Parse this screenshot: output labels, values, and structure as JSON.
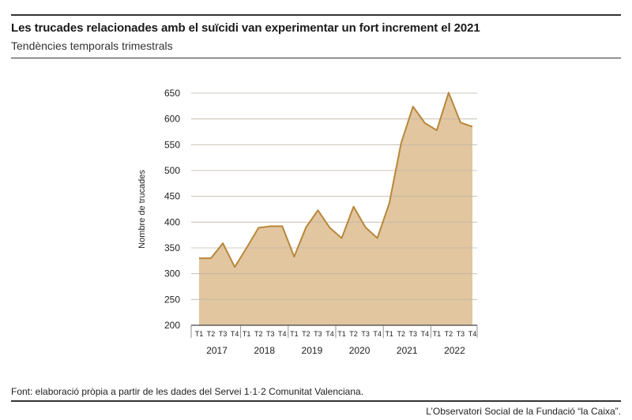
{
  "header": {
    "title": "Les trucades relacionades amb el suïcidi van experimentar un fort increment el 2021",
    "subtitle": "Tendències temporals trimestrals"
  },
  "footer": {
    "source": "Font: elaboració pròpia a partir de les dades del Servei 1·1·2 Comunitat Valenciana.",
    "credit": "L’Observatori Social de la Fundació “la Caixa”."
  },
  "colors": {
    "area_fill": "#e1c6a0",
    "line": "#b8873a",
    "grid": "#bfb6a8",
    "rule": "#333333"
  },
  "chart_data": {
    "type": "area",
    "title": "Les trucades relacionades amb el suïcidi van experimentar un fort increment el 2021",
    "subtitle": "Tendències temporals trimestrals",
    "xlabel": "",
    "ylabel": "Nombre de trucades",
    "ylim": [
      200,
      650
    ],
    "yticks": [
      200,
      250,
      300,
      350,
      400,
      450,
      500,
      550,
      600,
      650
    ],
    "grid": true,
    "quarter_labels": [
      "T1",
      "T2",
      "T3",
      "T4"
    ],
    "years": [
      "2017",
      "2018",
      "2019",
      "2020",
      "2021",
      "2022"
    ],
    "categories": [
      "2017 T1",
      "2017 T2",
      "2017 T3",
      "2017 T4",
      "2018 T1",
      "2018 T2",
      "2018 T3",
      "2018 T4",
      "2019 T1",
      "2019 T2",
      "2019 T3",
      "2019 T4",
      "2020 T1",
      "2020 T2",
      "2020 T3",
      "2020 T4",
      "2021 T1",
      "2021 T2",
      "2021 T3",
      "2021 T4",
      "2022 T1",
      "2022 T2",
      "2022 T3",
      "2022 T4"
    ],
    "values": [
      330,
      330,
      359,
      313,
      350,
      389,
      392,
      392,
      333,
      390,
      423,
      389,
      369,
      430,
      390,
      369,
      436,
      553,
      624,
      592,
      578,
      651,
      593,
      585
    ]
  }
}
